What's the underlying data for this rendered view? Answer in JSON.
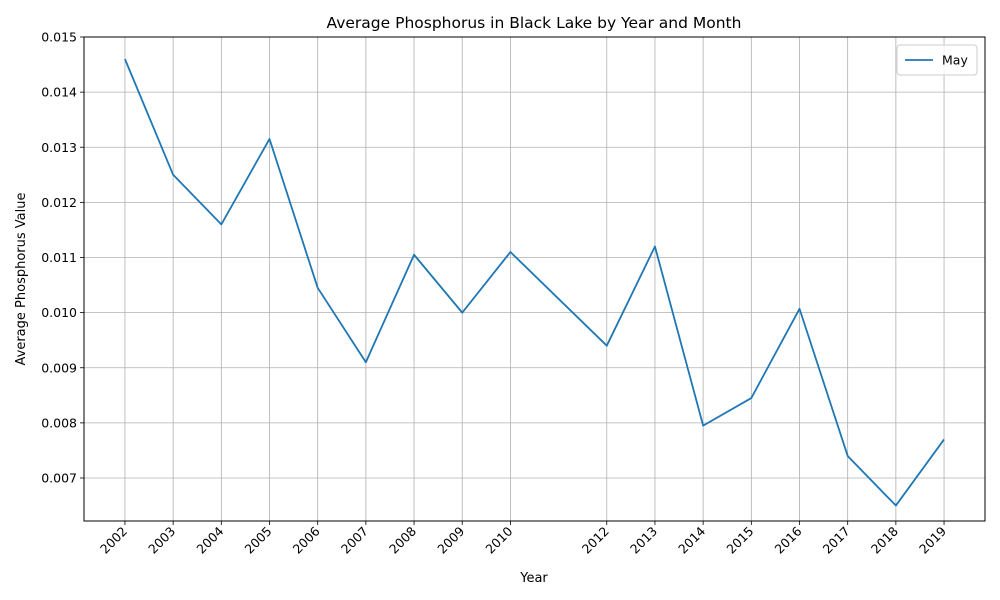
{
  "chart_data": {
    "type": "line",
    "title": "Average Phosphorus in Black Lake by Year and Month",
    "xlabel": "Year",
    "ylabel": "Average Phosphorus Value",
    "x": [
      2002,
      2003,
      2004,
      2005,
      2006,
      2007,
      2008,
      2009,
      2010,
      2012,
      2013,
      2014,
      2015,
      2016,
      2017,
      2018,
      2019
    ],
    "x_tick_labels": [
      "2002",
      "2003",
      "2004",
      "2005",
      "2006",
      "2007",
      "2008",
      "2009",
      "2010",
      "2012",
      "2013",
      "2014",
      "2015",
      "2016",
      "2017",
      "2018",
      "2019"
    ],
    "series": [
      {
        "name": "May",
        "color": "#1f77b4",
        "values": [
          0.0146,
          0.0125,
          0.0116,
          0.01315,
          0.01045,
          0.0091,
          0.01105,
          0.01,
          0.0111,
          0.0094,
          0.0112,
          0.00795,
          0.00845,
          0.01007,
          0.0074,
          0.0065,
          0.0077
        ]
      }
    ],
    "xlim": [
      2001.15,
      2019.85
    ],
    "ylim": [
      0.00622,
      0.015
    ],
    "y_ticks": [
      "0.007",
      "0.008",
      "0.009",
      "0.010",
      "0.011",
      "0.012",
      "0.013",
      "0.014",
      "0.015"
    ],
    "grid": true,
    "legend_position": "top-right"
  }
}
